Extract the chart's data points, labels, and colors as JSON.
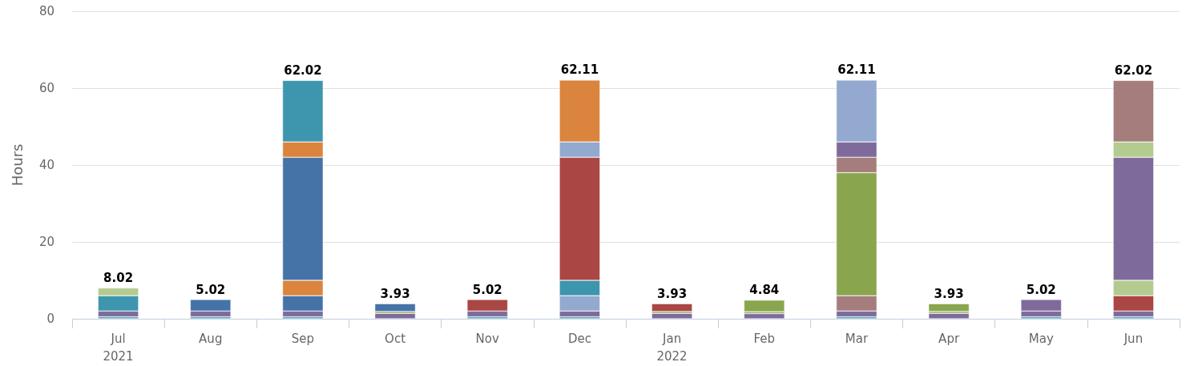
{
  "chart_data": {
    "type": "bar",
    "stacked": true,
    "ylabel": "Hours",
    "categories": [
      "Jul\n2021",
      "Aug",
      "Sep",
      "Oct",
      "Nov",
      "Dec",
      "Jan\n2022",
      "Feb",
      "Mar",
      "Apr",
      "May",
      "Jun"
    ],
    "series": [
      {
        "values": [
          0.5,
          0.5,
          0.5,
          1.4,
          0.5,
          0.5,
          1.4,
          1.34,
          0.5,
          1.4,
          0.5,
          0.5
        ],
        "colors": [
          "#3e96ae",
          "#3e96ae",
          "#3e96ae",
          "#7f6a9c",
          "#3e96ae",
          "#3e96ae",
          "#7f6a9c",
          "#7f6a9c",
          "#3e96ae",
          "#7f6a9c",
          "#3e96ae",
          "#3e96ae"
        ]
      },
      {
        "values": [
          1.5,
          1.5,
          1.5,
          0.5,
          1.5,
          1.5,
          0.5,
          0.5,
          1.5,
          0.5,
          1.5,
          1.5
        ],
        "colors": [
          "#7f6a9c",
          "#7f6a9c",
          "#7f6a9c",
          "#89a54e",
          "#7f6a9c",
          "#7f6a9c",
          "#89a54e",
          "#89a54e",
          "#7f6a9c",
          "#89a54e",
          "#7f6a9c",
          "#7f6a9c"
        ]
      },
      {
        "values": [
          4,
          3,
          4,
          2,
          3,
          4,
          2,
          3,
          4,
          2,
          3,
          4
        ],
        "colors": [
          "#3e96ae",
          "#4573a7",
          "#4573a7",
          "#4573a7",
          "#aa4643",
          "#93a9cf",
          "#aa4643",
          "#89a54e",
          "#a47d7c",
          "#89a54e",
          "#7f6a9c",
          "#aa4643"
        ]
      },
      {
        "values": [
          2,
          null,
          4,
          null,
          null,
          4,
          null,
          null,
          32,
          null,
          null,
          4
        ],
        "colors": [
          "#b4cb8f",
          "#b4cb8f",
          "#db843d",
          "#db843d",
          "#db843d",
          "#3e96ae",
          "#3e96ae",
          "#3e96ae",
          "#89a54e",
          "#89a54e",
          "#89a54e",
          "#b4cb8f"
        ]
      },
      {
        "values": [
          null,
          null,
          32,
          null,
          null,
          32,
          null,
          null,
          4,
          null,
          null,
          32
        ],
        "colors": [
          "#4573a7",
          "#4573a7",
          "#4573a7",
          "#4573a7",
          "#4573a7",
          "#aa4643",
          "#aa4643",
          "#aa4643",
          "#a47d7c",
          "#a47d7c",
          "#a47d7c",
          "#7f6a9c"
        ]
      },
      {
        "values": [
          null,
          null,
          4,
          null,
          null,
          4,
          null,
          null,
          4,
          null,
          null,
          4
        ],
        "colors": [
          "#db843d",
          "#db843d",
          "#db843d",
          "#db843d",
          "#db843d",
          "#93a9cf",
          "#93a9cf",
          "#93a9cf",
          "#7f6a9c",
          "#7f6a9c",
          "#7f6a9c",
          "#b4cb8f"
        ]
      },
      {
        "values": [
          null,
          null,
          16,
          null,
          null,
          16.1,
          null,
          null,
          16.1,
          null,
          null,
          16
        ],
        "colors": [
          "#3e96ae",
          "#3e96ae",
          "#3e96ae",
          "#3e96ae",
          "#3e96ae",
          "#db843d",
          "#db843d",
          "#db843d",
          "#93a9cf",
          "#93a9cf",
          "#93a9cf",
          "#a47d7c"
        ]
      }
    ],
    "totals": [
      "8.02",
      "5.02",
      "62.02",
      "3.93",
      "5.02",
      "62.11",
      "3.93",
      "4.84",
      "62.11",
      "3.93",
      "5.02",
      "62.02"
    ],
    "ylim": [
      0,
      80
    ],
    "yticks": [
      0,
      20,
      40,
      60,
      80
    ],
    "grid": "y"
  }
}
